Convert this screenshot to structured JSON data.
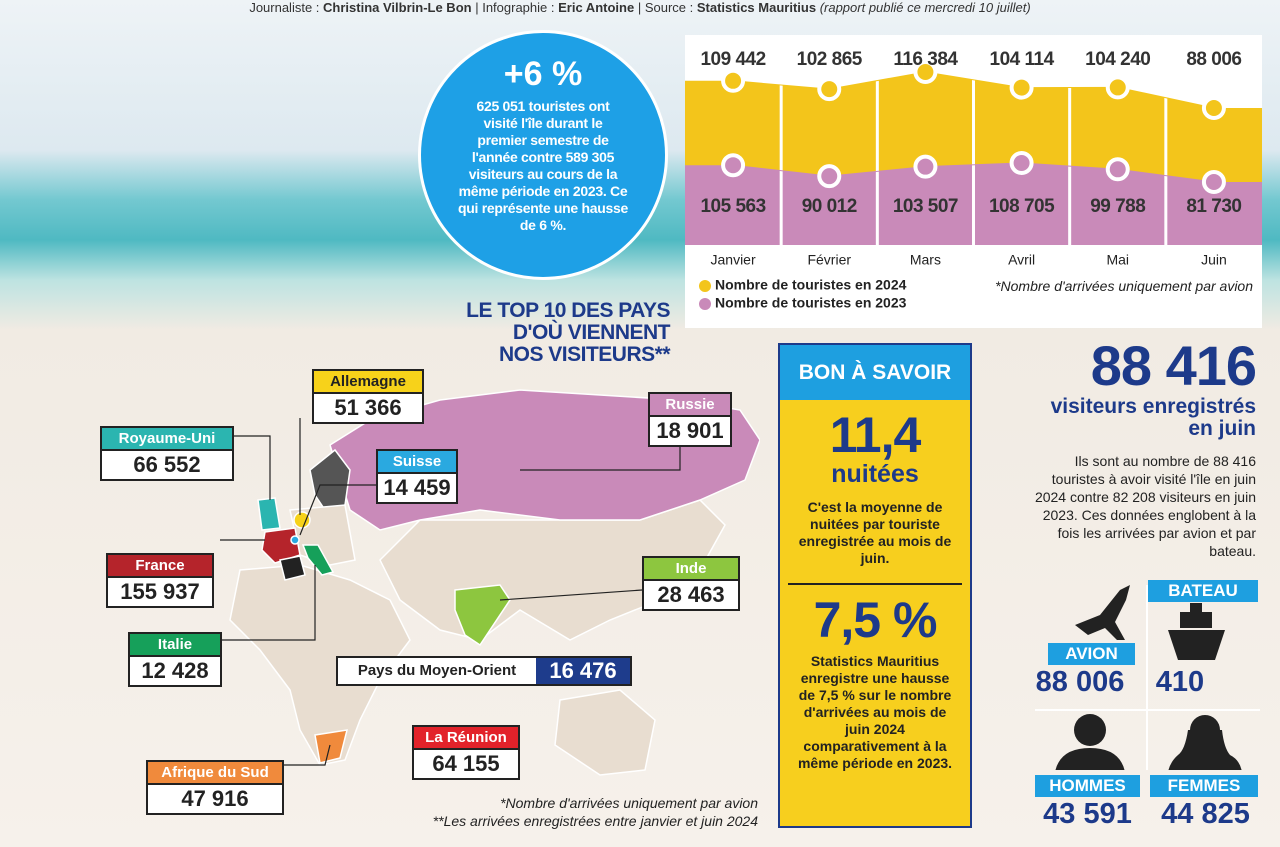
{
  "header": {
    "label_1": "Journaliste :",
    "name_1": "Christina Vilbrin-Le Bon",
    "label_2": "| Infographie :",
    "name_2": "Eric Antoine",
    "label_3": "| Source :",
    "name_3": "Statistics Mauritius",
    "note": "(rapport publié ce mercredi 10 juillet)"
  },
  "bubble": {
    "headline": "+6 %",
    "text": "625 051 touristes ont visité l'île durant le premier semestre de l'année contre 589 305 visiteurs au cours de la même période en 2023. Ce qui représente une hausse de 6 %."
  },
  "chart_data": {
    "type": "area",
    "categories": [
      "Janvier",
      "Février",
      "Mars",
      "Avril",
      "Mai",
      "Juin"
    ],
    "series": [
      {
        "name": "Nombre de touristes en 2024",
        "color": "#f3c51b",
        "values": [
          109442,
          102865,
          116384,
          104114,
          104240,
          88006
        ],
        "value_labels": [
          "109 442",
          "102 865",
          "116 384",
          "104 114",
          "104 240",
          "88 006"
        ]
      },
      {
        "name": "Nombre de touristes en 2023",
        "color": "#c98ab9",
        "values": [
          105563,
          90012,
          103507,
          108705,
          99788,
          81730
        ],
        "value_labels": [
          "105 563",
          "90 012",
          "103 507",
          "108 705",
          "99 788",
          "81 730"
        ]
      }
    ],
    "note": "*Nombre d'arrivées uniquement par avion"
  },
  "top10": {
    "title_lines": [
      "LE TOP 10 DES PAYS",
      "D'OÙ VIENNENT",
      "NOS VISITEURS**"
    ],
    "countries": [
      {
        "name": "Allemagne",
        "value": "51 366",
        "color": "#f7d21a"
      },
      {
        "name": "Russie",
        "value": "18 901",
        "color": "#c98ab9"
      },
      {
        "name": "Royaume-Uni",
        "value": "66 552",
        "color": "#2bb5b0"
      },
      {
        "name": "Suisse",
        "value": "14 459",
        "color": "#2aa9e0"
      },
      {
        "name": "France",
        "value": "155 937",
        "color": "#b5242b"
      },
      {
        "name": "Inde",
        "value": "28 463",
        "color": "#8dc63f"
      },
      {
        "name": "Italie",
        "value": "12 428",
        "color": "#16a05a"
      },
      {
        "name": "Pays du Moyen-Orient",
        "value": "16 476",
        "color": "#1e3c8c"
      },
      {
        "name": "La Réunion",
        "value": "64 155",
        "color": "#e2222a"
      },
      {
        "name": "Afrique du Sud",
        "value": "47 916",
        "color": "#f08a3c"
      }
    ],
    "footnotes": [
      "*Nombre d'arrivées uniquement par avion",
      "**Les arrivées enregistrées entre janvier et juin 2024"
    ]
  },
  "bon_a_savoir": {
    "heading": "BON À SAVOIR",
    "stat_1": "11,4",
    "unit_1": "nuitées",
    "text_1": "C'est la moyenne de nuitées par touriste enregistrée au mois de juin.",
    "stat_2": "7,5 %",
    "text_2": "Statistics Mauritius enregistre une hausse de 7,5 % sur le nombre d'arrivées au mois de juin 2024 comparativement à la même période en 2023."
  },
  "june": {
    "total": "88 416",
    "subtitle_1": "visiteurs enregistrés",
    "subtitle_2": "en juin",
    "text": "Ils sont au nombre de 88 416 touristes à avoir visité l'île en juin 2024 contre 82 208 visiteurs en juin 2023. Ces données englobent à la fois les arrivées par avion et par bateau.",
    "breakdown": [
      {
        "label": "AVION",
        "value": "88 006"
      },
      {
        "label": "BATEAU",
        "value": "410"
      },
      {
        "label": "HOMMES",
        "value": "43 591"
      },
      {
        "label": "FEMMES",
        "value": "44 825"
      }
    ]
  }
}
